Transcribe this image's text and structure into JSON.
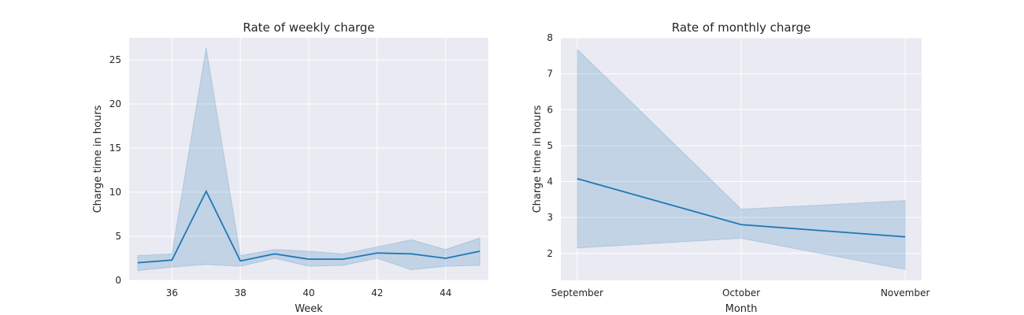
{
  "chart_data": [
    {
      "type": "line",
      "title": "Rate of weekly charge",
      "xlabel": "Week",
      "ylabel": "Charge time in hours",
      "xlim": [
        34.75,
        45.25
      ],
      "ylim": [
        0,
        27.5
      ],
      "xticks": [
        36,
        38,
        40,
        42,
        44
      ],
      "yticks": [
        0,
        5,
        10,
        15,
        20,
        25
      ],
      "grid": true,
      "series": [
        {
          "x": [
            35,
            36,
            37,
            38,
            39,
            40,
            41,
            42,
            43,
            44,
            45
          ],
          "y": [
            2.0,
            2.3,
            10.1,
            2.2,
            3.0,
            2.4,
            2.4,
            3.1,
            3.0,
            2.5,
            3.3
          ],
          "ci_low": [
            1.1,
            1.5,
            1.8,
            1.6,
            2.5,
            1.6,
            1.7,
            2.5,
            1.2,
            1.6,
            1.7
          ],
          "ci_high": [
            2.8,
            3.0,
            26.4,
            2.8,
            3.5,
            3.3,
            3.0,
            3.8,
            4.6,
            3.5,
            4.8
          ]
        }
      ]
    },
    {
      "type": "line",
      "title": "Rate of monthly charge",
      "xlabel": "Month",
      "ylabel": "Charge time in hours",
      "categories": [
        "September",
        "October",
        "November"
      ],
      "ylim": [
        1.25,
        8.0
      ],
      "yticks": [
        2,
        3,
        4,
        5,
        6,
        7,
        8
      ],
      "grid": true,
      "series": [
        {
          "y": [
            4.08,
            2.8,
            2.46
          ],
          "ci_low": [
            2.15,
            2.42,
            1.55
          ],
          "ci_high": [
            7.68,
            3.23,
            3.47
          ]
        }
      ]
    }
  ]
}
